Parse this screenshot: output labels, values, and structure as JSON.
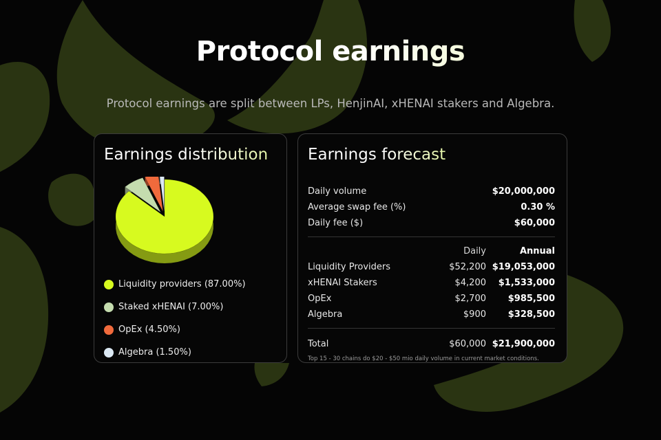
{
  "page": {
    "title": "Protocol earnings",
    "subtitle": "Protocol earnings are split between LPs, HenjinAI, xHENAI stakers and Algebra."
  },
  "colors": {
    "background": "#050505",
    "accent_lime": "#d7fa1f",
    "sage": "#c4dcae",
    "orange": "#f06a3c",
    "pale_blue": "#dce9f4",
    "blob": "#2a3412"
  },
  "distribution": {
    "title": "Earnings distribution",
    "legend": [
      {
        "label": "Liquidity providers (87.00%)",
        "percent": 87.0,
        "color": "#d7fa1f"
      },
      {
        "label": "Staked xHENAI (7.00%)",
        "percent": 7.0,
        "color": "#c4dcae"
      },
      {
        "label": "OpEx (4.50%)",
        "percent": 4.5,
        "color": "#f06a3c"
      },
      {
        "label": "Algebra (1.50%)",
        "percent": 1.5,
        "color": "#dce9f4"
      }
    ]
  },
  "forecast": {
    "title": "Earnings forecast",
    "inputs": [
      {
        "label": "Daily volume",
        "value": "$20,000,000"
      },
      {
        "label": "Average swap fee (%)",
        "value": "0.30 %"
      },
      {
        "label": "Daily fee ($)",
        "value": "$60,000"
      }
    ],
    "columns": {
      "daily": "Daily",
      "annual": "Annual"
    },
    "rows": [
      {
        "label": "Liquidity Providers",
        "daily": "$52,200",
        "annual": "$19,053,000"
      },
      {
        "label": "xHENAI Stakers",
        "daily": "$4,200",
        "annual": "$1,533,000"
      },
      {
        "label": "OpEx",
        "daily": "$2,700",
        "annual": "$985,500"
      },
      {
        "label": "Algebra",
        "daily": "$900",
        "annual": "$328,500"
      }
    ],
    "total": {
      "label": "Total",
      "daily": "$60,000",
      "annual": "$21,900,000"
    },
    "note": "Top 15 - 30 chains do $20 - $50 mio daily volume in current market conditions."
  }
}
